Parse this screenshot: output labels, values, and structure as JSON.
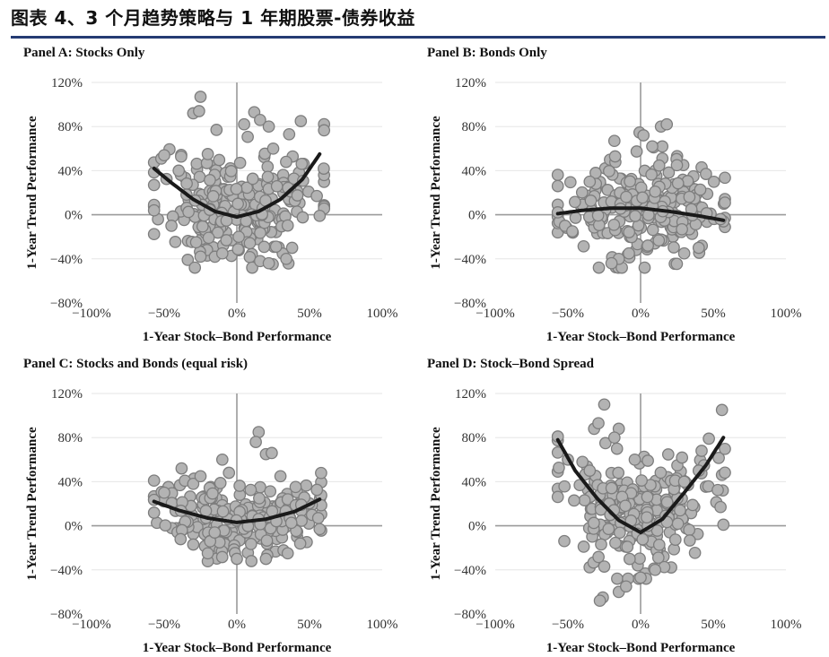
{
  "figure_title": "图表 4、3 个月趋势策略与 1 年期股票-债券收益",
  "colors": {
    "rule": "#243b73",
    "point_fill": "#b3b3b3",
    "point_stroke": "#7d7d7d",
    "curve": "#1a1a1a",
    "axis": "#9a9a9a",
    "grid": "#e6e6e6"
  },
  "chart_data": [
    {
      "type": "scatter",
      "title": "Panel A: Stocks Only",
      "xlabel": "1-Year Stock–Bond Performance",
      "ylabel": "1-Year Trend Performance",
      "xlim": [
        -100,
        100
      ],
      "ylim": [
        -80,
        120
      ],
      "xticks": [
        "−100%",
        "−50%",
        "0%",
        "50%",
        "100%"
      ],
      "yticks": [
        "120%",
        "80%",
        "40%",
        "0%",
        "−40%",
        "−80%"
      ],
      "cloud": {
        "x_range": [
          -57,
          60
        ],
        "center_y": 5,
        "spread_y": 25,
        "shape": "bowl",
        "n": 230,
        "seed": 11
      },
      "points": [
        [
          -52,
          51
        ],
        [
          -50,
          54
        ],
        [
          -30,
          92
        ],
        [
          -25,
          107
        ],
        [
          -26,
          94
        ],
        [
          -14,
          77
        ],
        [
          12,
          93
        ],
        [
          16,
          86
        ],
        [
          22,
          80
        ],
        [
          5,
          82
        ],
        [
          36,
          73
        ],
        [
          44,
          85
        ],
        [
          55,
          17
        ],
        [
          57,
          -1
        ],
        [
          -45,
          -10
        ],
        [
          -28,
          -25
        ],
        [
          -25,
          -38
        ],
        [
          -10,
          -35
        ],
        [
          16,
          -42
        ],
        [
          22,
          -44
        ],
        [
          34,
          -40
        ],
        [
          38,
          -30
        ],
        [
          -40,
          40
        ],
        [
          -20,
          55
        ],
        [
          25,
          60
        ]
      ],
      "curve": {
        "x": [
          -57,
          -45,
          -30,
          -15,
          0,
          15,
          30,
          45,
          57
        ],
        "y": [
          42,
          29,
          14,
          3,
          -2,
          3,
          14,
          32,
          55
        ]
      }
    },
    {
      "type": "scatter",
      "title": "Panel B: Bonds Only",
      "xlabel": "1-Year Stock–Bond Performance",
      "ylabel": "1-Year Trend Performance",
      "xlim": [
        -100,
        100
      ],
      "ylim": [
        -80,
        120
      ],
      "xticks": [
        "−100%",
        "−50%",
        "0%",
        "50%",
        "100%"
      ],
      "yticks": [
        "120%",
        "80%",
        "40%",
        "0%",
        "−40%",
        "−80%"
      ],
      "cloud": {
        "x_range": [
          -57,
          58
        ],
        "center_y": 8,
        "spread_y": 22,
        "shape": "flat",
        "n": 230,
        "seed": 23
      },
      "points": [
        [
          -57,
          26
        ],
        [
          -52,
          -10
        ],
        [
          -47,
          -15
        ],
        [
          -18,
          67
        ],
        [
          2,
          72
        ],
        [
          14,
          80
        ],
        [
          18,
          82
        ],
        [
          8,
          62
        ],
        [
          42,
          43
        ],
        [
          45,
          37
        ],
        [
          57,
          -6
        ],
        [
          55,
          -4
        ],
        [
          -15,
          -40
        ],
        [
          -20,
          -44
        ],
        [
          -8,
          -35
        ],
        [
          5,
          -28
        ],
        [
          30,
          -35
        ],
        [
          40,
          -30
        ],
        [
          -35,
          30
        ],
        [
          25,
          45
        ]
      ],
      "curve": {
        "x": [
          -57,
          -40,
          -20,
          0,
          20,
          40,
          57
        ],
        "y": [
          1,
          4,
          6,
          6,
          3,
          -1,
          -5
        ]
      }
    },
    {
      "type": "scatter",
      "title": "Panel C: Stocks and Bonds (equal risk)",
      "xlabel": "1-Year Stock–Bond Performance",
      "ylabel": "1-Year Trend Performance",
      "xlim": [
        -100,
        100
      ],
      "ylim": [
        -80,
        120
      ],
      "xticks": [
        "−100%",
        "−50%",
        "0%",
        "50%",
        "100%"
      ],
      "yticks": [
        "120%",
        "80%",
        "40%",
        "0%",
        "−40%",
        "−80%"
      ],
      "cloud": {
        "x_range": [
          -57,
          58
        ],
        "center_y": 10,
        "spread_y": 17,
        "shape": "slight-bowl",
        "n": 230,
        "seed": 37
      },
      "points": [
        [
          -57,
          41
        ],
        [
          -50,
          30
        ],
        [
          -38,
          52
        ],
        [
          15,
          85
        ],
        [
          13,
          76
        ],
        [
          20,
          65
        ],
        [
          24,
          66
        ],
        [
          30,
          45
        ],
        [
          56,
          7
        ],
        [
          57,
          -3
        ],
        [
          -30,
          -17
        ],
        [
          -20,
          -25
        ],
        [
          0,
          -30
        ],
        [
          10,
          -32
        ],
        [
          20,
          -30
        ],
        [
          35,
          -25
        ],
        [
          -10,
          60
        ],
        [
          -25,
          45
        ]
      ],
      "curve": {
        "x": [
          -57,
          -40,
          -20,
          0,
          20,
          40,
          57
        ],
        "y": [
          22,
          14,
          7,
          3,
          6,
          13,
          24
        ]
      }
    },
    {
      "type": "scatter",
      "title": "Panel D: Stock–Bond Spread",
      "xlabel": "1-Year Stock–Bond Performance",
      "ylabel": "1-Year Trend Performance",
      "xlim": [
        -100,
        100
      ],
      "ylim": [
        -80,
        120
      ],
      "xticks": [
        "−100%",
        "−50%",
        "0%",
        "50%",
        "100%"
      ],
      "yticks": [
        "120%",
        "80%",
        "40%",
        "0%",
        "−40%",
        "−80%"
      ],
      "cloud": {
        "x_range": [
          -57,
          58
        ],
        "center_y": 8,
        "spread_y": 25,
        "shape": "v",
        "n": 250,
        "seed": 53
      },
      "points": [
        [
          -57,
          81
        ],
        [
          -50,
          60
        ],
        [
          -32,
          88
        ],
        [
          -25,
          110
        ],
        [
          -29,
          93
        ],
        [
          -15,
          88
        ],
        [
          -18,
          80
        ],
        [
          -4,
          60
        ],
        [
          5,
          59
        ],
        [
          -40,
          58
        ],
        [
          -35,
          50
        ],
        [
          42,
          68
        ],
        [
          47,
          79
        ],
        [
          56,
          105
        ],
        [
          55,
          17
        ],
        [
          57,
          1
        ],
        [
          -25,
          -37
        ],
        [
          -26,
          -65
        ],
        [
          -28,
          -68
        ],
        [
          -15,
          -60
        ],
        [
          -10,
          -55
        ],
        [
          0,
          -47
        ],
        [
          10,
          -40
        ],
        [
          40,
          50
        ],
        [
          30,
          40
        ]
      ],
      "curve": {
        "x": [
          -57,
          -45,
          -30,
          -15,
          0,
          15,
          30,
          45,
          57
        ],
        "y": [
          78,
          50,
          25,
          5,
          -6,
          6,
          30,
          55,
          80
        ]
      }
    }
  ]
}
